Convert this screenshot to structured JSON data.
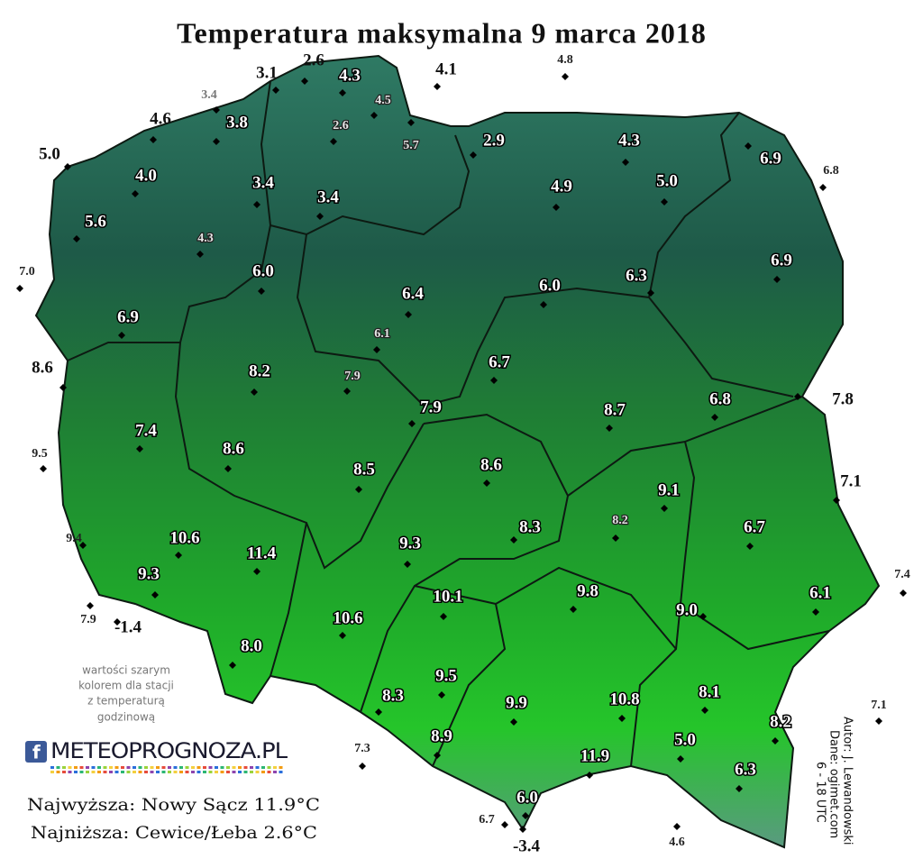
{
  "title": "Temperatura maksymalna 9 marca 2018",
  "note": [
    "wartości szarym",
    "kolorem dla stacji",
    "z temperaturą",
    "godzinową"
  ],
  "logo": "METEOPROGNOZA.PL",
  "extremes": [
    "Najwyższa: Nowy Sącz 11.9°C",
    "Najniższa: Cewice/Łeba 2.6°C"
  ],
  "credits": [
    "Autor: J. Lewandowski",
    "Dane: ogimet.com",
    "6 - 18 UTC"
  ],
  "stations": [
    {
      "value": "3.1",
      "style": "black"
    },
    {
      "value": "2.6",
      "style": "black"
    },
    {
      "value": "4.3",
      "style": "white"
    },
    {
      "value": "4.1",
      "style": "black"
    },
    {
      "value": "4.8",
      "style": "black-small"
    },
    {
      "value": "3.4",
      "style": "gray-small"
    },
    {
      "value": "4.5",
      "style": "gray"
    },
    {
      "value": "3.8",
      "style": "white"
    },
    {
      "value": "2.6",
      "style": "gray"
    },
    {
      "value": "4.6",
      "style": "black"
    },
    {
      "value": "5.7",
      "style": "gray"
    },
    {
      "value": "2.9",
      "style": "white"
    },
    {
      "value": "4.3",
      "style": "white"
    },
    {
      "value": "6.9",
      "style": "white"
    },
    {
      "value": "6.8",
      "style": "black-small"
    },
    {
      "value": "5.0",
      "style": "black"
    },
    {
      "value": "4.0",
      "style": "white"
    },
    {
      "value": "3.4",
      "style": "white"
    },
    {
      "value": "3.4",
      "style": "white"
    },
    {
      "value": "4.9",
      "style": "white"
    },
    {
      "value": "5.0",
      "style": "white"
    },
    {
      "value": "5.6",
      "style": "white"
    },
    {
      "value": "4.3",
      "style": "gray"
    },
    {
      "value": "7.0",
      "style": "black-small"
    },
    {
      "value": "6.0",
      "style": "white"
    },
    {
      "value": "6.4",
      "style": "white"
    },
    {
      "value": "6.0",
      "style": "white"
    },
    {
      "value": "6.3",
      "style": "white"
    },
    {
      "value": "6.9",
      "style": "white"
    },
    {
      "value": "6.9",
      "style": "white"
    },
    {
      "value": "6.1",
      "style": "gray"
    },
    {
      "value": "8.6",
      "style": "black"
    },
    {
      "value": "8.2",
      "style": "white"
    },
    {
      "value": "7.9",
      "style": "gray"
    },
    {
      "value": "6.7",
      "style": "white"
    },
    {
      "value": "7.9",
      "style": "white"
    },
    {
      "value": "8.7",
      "style": "white"
    },
    {
      "value": "6.8",
      "style": "white"
    },
    {
      "value": "7.8",
      "style": "black"
    },
    {
      "value": "7.4",
      "style": "white"
    },
    {
      "value": "9.5",
      "style": "black-small"
    },
    {
      "value": "8.6",
      "style": "white"
    },
    {
      "value": "8.5",
      "style": "white"
    },
    {
      "value": "8.6",
      "style": "white"
    },
    {
      "value": "9.1",
      "style": "white"
    },
    {
      "value": "7.1",
      "style": "black"
    },
    {
      "value": "8.3",
      "style": "white"
    },
    {
      "value": "8.2",
      "style": "gray"
    },
    {
      "value": "6.7",
      "style": "white"
    },
    {
      "value": "9.4",
      "style": "black-small"
    },
    {
      "value": "10.6",
      "style": "white"
    },
    {
      "value": "11.4",
      "style": "white"
    },
    {
      "value": "9.3",
      "style": "white"
    },
    {
      "value": "9.3",
      "style": "white"
    },
    {
      "value": "10.1",
      "style": "white"
    },
    {
      "value": "9.8",
      "style": "white"
    },
    {
      "value": "7.4",
      "style": "black-small"
    },
    {
      "value": "6.1",
      "style": "white"
    },
    {
      "value": "9.0",
      "style": "white"
    },
    {
      "value": "7.9",
      "style": "black-small"
    },
    {
      "value": "-1.4",
      "style": "black"
    },
    {
      "value": "10.6",
      "style": "white"
    },
    {
      "value": "8.0",
      "style": "white"
    },
    {
      "value": "9.5",
      "style": "white"
    },
    {
      "value": "8.3",
      "style": "white"
    },
    {
      "value": "9.9",
      "style": "white"
    },
    {
      "value": "10.8",
      "style": "white"
    },
    {
      "value": "8.1",
      "style": "white"
    },
    {
      "value": "7.1",
      "style": "black-small"
    },
    {
      "value": "8.2",
      "style": "white"
    },
    {
      "value": "8.9",
      "style": "white"
    },
    {
      "value": "7.3",
      "style": "black-small"
    },
    {
      "value": "5.0",
      "style": "white"
    },
    {
      "value": "11.9",
      "style": "white"
    },
    {
      "value": "6.3",
      "style": "white"
    },
    {
      "value": "6.0",
      "style": "white"
    },
    {
      "value": "6.7",
      "style": "black-small"
    },
    {
      "value": "-3.4",
      "style": "black"
    },
    {
      "value": "4.6",
      "style": "black-small"
    }
  ]
}
